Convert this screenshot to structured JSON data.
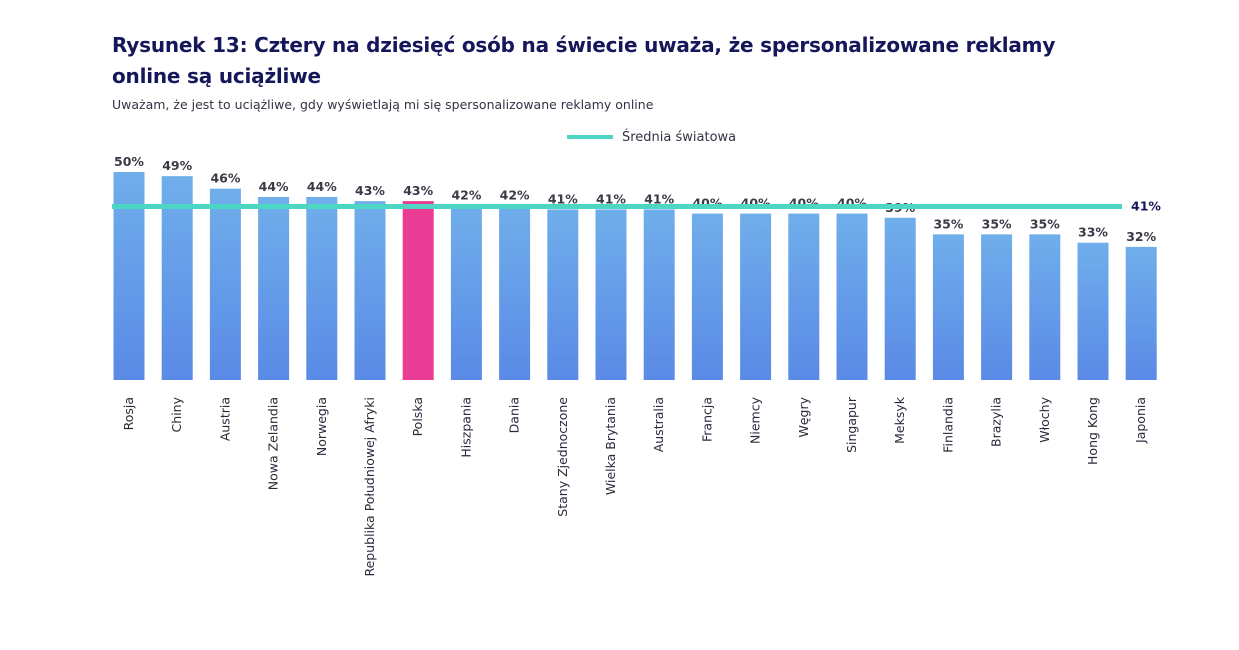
{
  "title": "Rysunek 13: Cztery na dziesięć osób na świecie uważa, że spersonalizowane reklamy online są uciążliwe",
  "subtitle": "Uważam, że jest to uciążliwe, gdy wyświetlają mi się spersonalizowane reklamy online",
  "colors": {
    "bar_top": "#70aeeb",
    "bar_bottom": "#5a8ae6",
    "highlight": "#ea3c95",
    "average_line": "#4dd6c4"
  },
  "chart_data": {
    "type": "bar",
    "categories": [
      "Rosja",
      "Chiny",
      "Austria",
      "Nowa Zelandia",
      "Norwegia",
      "Republika Południowej Afryki",
      "Polska",
      "Hiszpania",
      "Dania",
      "Stany Zjednoczone",
      "Wielka Brytania",
      "Australia",
      "Francja",
      "Niemcy",
      "Węgry",
      "Singapur",
      "Meksyk",
      "Finlandia",
      "Brazylia",
      "Włochy",
      "Hong Kong",
      "Japonia"
    ],
    "values": [
      50,
      49,
      46,
      44,
      44,
      43,
      43,
      42,
      42,
      41,
      41,
      41,
      40,
      40,
      40,
      40,
      39,
      35,
      35,
      35,
      33,
      32
    ],
    "value_labels": [
      "50%",
      "49%",
      "46%",
      "44%",
      "44%",
      "43%",
      "43%",
      "42%",
      "42%",
      "41%",
      "41%",
      "41%",
      "40%",
      "40%",
      "40%",
      "40%",
      "39%",
      "35%",
      "35%",
      "35%",
      "33%",
      "32%"
    ],
    "highlighted": "Polska",
    "average": {
      "name": "Średnia światowa",
      "value": 41,
      "label": "41%"
    },
    "legend_position": "top-center",
    "ylim": [
      0,
      50
    ],
    "grid": false
  }
}
